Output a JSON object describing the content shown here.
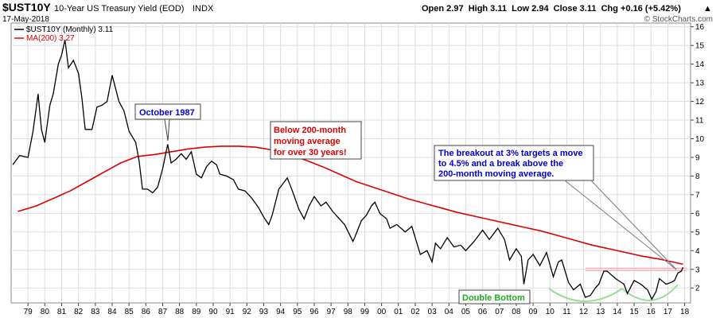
{
  "header": {
    "symbol": "$UST10Y",
    "description": "10-Year US Treasury Yield (EOD)",
    "exchange": "INDX",
    "date": "17-May-2018",
    "quote": "Open 2.97  High 3.11  Low 2.94  Close 3.11  Chg +0.16 (+5.42%)",
    "quote_arrow": "▲",
    "copyright": "© StockCharts.com"
  },
  "legend": {
    "main": "$UST10Y (Monthly) 3.11",
    "ma": "MA(200) 3.27"
  },
  "annotations": {
    "october_1987": "October 1987",
    "below_ma": [
      "Below 200-month",
      "moving average",
      "for over 30 years!"
    ],
    "breakout": [
      "The breakout at 3% targets a move",
      "to 4.5% and a break above the",
      "200-month moving average."
    ],
    "double_bottom": "Double Bottom"
  },
  "colors": {
    "yield_line": "#000000",
    "ma_line": "#dd0000",
    "blue_text": "#0000cc",
    "red_text": "#dd0000",
    "green_text": "#22aa22",
    "pattern_arc": "#99dd99",
    "resistance": "#ff9999",
    "grid": "#dcdcdc"
  },
  "chart_data": {
    "type": "line",
    "xlabel": "",
    "ylabel": "",
    "ylim": [
      1.2,
      16.2
    ],
    "y_ticks": [
      2,
      3,
      4,
      5,
      6,
      7,
      8,
      9,
      10,
      11,
      12,
      13,
      14,
      15,
      16
    ],
    "x_ticks": [
      "79",
      "80",
      "81",
      "82",
      "83",
      "84",
      "85",
      "86",
      "87",
      "88",
      "89",
      "90",
      "91",
      "92",
      "93",
      "94",
      "95",
      "96",
      "97",
      "98",
      "99",
      "00",
      "01",
      "02",
      "03",
      "04",
      "05",
      "06",
      "07",
      "08",
      "09",
      "10",
      "11",
      "12",
      "13",
      "14",
      "15",
      "16",
      "17",
      "18"
    ],
    "x_range": [
      1978.5,
      2018.85
    ],
    "grid": true,
    "legend_position": "top-left",
    "series": [
      {
        "name": "$UST10Y (Monthly) 3.11",
        "x": [
          1978.6,
          1979.0,
          1979.5,
          1979.8,
          1980.1,
          1980.3,
          1980.5,
          1980.8,
          1981.0,
          1981.3,
          1981.5,
          1981.7,
          1981.9,
          1982.2,
          1982.5,
          1982.7,
          1982.9,
          1983.3,
          1983.6,
          1983.9,
          1984.2,
          1984.5,
          1984.9,
          1985.2,
          1985.5,
          1985.9,
          1986.1,
          1986.3,
          1986.6,
          1986.9,
          1987.2,
          1987.5,
          1987.8,
          1988.0,
          1988.3,
          1988.6,
          1988.9,
          1989.2,
          1989.5,
          1989.8,
          1990.1,
          1990.4,
          1990.7,
          1990.9,
          1991.3,
          1991.7,
          1992.0,
          1992.4,
          1992.8,
          1993.2,
          1993.5,
          1993.8,
          1994.0,
          1994.4,
          1994.9,
          1995.2,
          1995.6,
          1995.9,
          1996.2,
          1996.5,
          1996.9,
          1997.2,
          1997.6,
          1997.9,
          1998.3,
          1998.8,
          1998.9,
          1999.3,
          1999.6,
          1999.9,
          2000.1,
          2000.4,
          2000.8,
          2001.0,
          2001.4,
          2001.9,
          2002.3,
          2002.8,
          2003.2,
          2003.5,
          2003.7,
          2004.0,
          2004.4,
          2004.8,
          2005.2,
          2005.5,
          2006.0,
          2006.5,
          2006.9,
          2007.4,
          2007.8,
          2008.1,
          2008.5,
          2008.8,
          2008.95,
          2009.2,
          2009.5,
          2009.9,
          2010.3,
          2010.7,
          2011.0,
          2011.2,
          2011.6,
          2011.9,
          2012.3,
          2012.6,
          2012.9,
          2013.2,
          2013.4,
          2013.7,
          2013.9,
          2014.4,
          2014.9,
          2015.1,
          2015.5,
          2015.9,
          2016.3,
          2016.55,
          2016.8,
          2017.0,
          2017.4,
          2017.7,
          2017.9,
          2018.1,
          2018.3,
          2018.4
        ],
        "y": [
          8.6,
          9.1,
          9.0,
          10.4,
          12.4,
          10.5,
          9.8,
          11.8,
          12.4,
          14.0,
          14.5,
          15.3,
          13.8,
          14.2,
          13.5,
          12.2,
          10.5,
          10.5,
          11.7,
          11.8,
          12.0,
          13.4,
          12.0,
          11.5,
          10.4,
          9.8,
          8.8,
          7.3,
          7.3,
          7.1,
          7.4,
          8.4,
          9.7,
          8.7,
          8.9,
          9.2,
          8.9,
          9.3,
          8.1,
          7.9,
          8.5,
          8.8,
          8.6,
          8.1,
          8.0,
          7.8,
          7.3,
          7.2,
          6.8,
          6.3,
          5.8,
          5.4,
          5.9,
          7.3,
          7.9,
          7.2,
          6.2,
          5.7,
          6.4,
          6.9,
          6.4,
          6.6,
          6.1,
          5.8,
          5.4,
          4.5,
          4.7,
          5.6,
          5.9,
          6.4,
          6.6,
          6.0,
          5.7,
          5.2,
          5.4,
          5.0,
          5.3,
          3.8,
          4.0,
          3.4,
          4.4,
          4.1,
          4.7,
          4.2,
          4.3,
          4.0,
          4.5,
          5.1,
          4.6,
          5.2,
          4.6,
          3.5,
          4.1,
          3.7,
          2.2,
          3.5,
          3.8,
          3.2,
          3.9,
          2.6,
          3.4,
          3.5,
          2.3,
          1.9,
          2.2,
          1.5,
          1.6,
          2.0,
          2.2,
          2.9,
          2.9,
          2.5,
          2.2,
          1.7,
          2.4,
          2.2,
          1.9,
          1.4,
          1.8,
          2.5,
          2.2,
          2.3,
          2.4,
          2.8,
          2.9,
          3.11
        ]
      },
      {
        "name": "MA(200) 3.27",
        "x": [
          1978.9,
          1980.0,
          1981.0,
          1982.0,
          1983.0,
          1984.0,
          1985.0,
          1986.0,
          1987.0,
          1988.0,
          1989.0,
          1990.0,
          1991.0,
          1992.0,
          1993.0,
          1994.0,
          1995.0,
          1996.0,
          1997.0,
          1998.0,
          1999.0,
          2000.0,
          2001.0,
          2002.0,
          2003.0,
          2004.0,
          2005.0,
          2006.0,
          2007.0,
          2008.0,
          2009.0,
          2010.0,
          2011.0,
          2012.0,
          2013.0,
          2014.0,
          2015.0,
          2016.0,
          2017.0,
          2018.0,
          2018.4
        ],
        "y": [
          6.1,
          6.4,
          6.8,
          7.2,
          7.7,
          8.2,
          8.7,
          9.05,
          9.15,
          9.3,
          9.45,
          9.55,
          9.6,
          9.6,
          9.55,
          9.4,
          9.15,
          8.85,
          8.5,
          8.1,
          7.7,
          7.4,
          7.1,
          6.8,
          6.55,
          6.3,
          6.05,
          5.85,
          5.65,
          5.45,
          5.25,
          5.05,
          4.8,
          4.55,
          4.3,
          4.1,
          3.9,
          3.7,
          3.55,
          3.35,
          3.27
        ]
      }
    ],
    "reference_lines": [
      {
        "y": 3.0,
        "x_start": 2012.6,
        "x_end": 2018.6
      }
    ]
  }
}
